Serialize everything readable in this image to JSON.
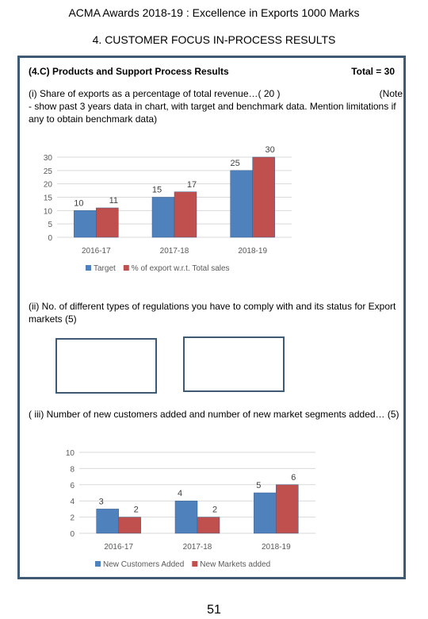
{
  "header": {
    "title": "ACMA  Awards  2018-19 : Excellence in Exports 1000 Marks"
  },
  "section": {
    "title": "4. CUSTOMER FOCUS IN-PROCESS RESULTS"
  },
  "subsection": {
    "title": "(4.C) Products and Support Process Results",
    "total": "Total = 30"
  },
  "item1": {
    "text": "(i) Share of exports as a percentage of total revenue…( 20 )",
    "note_start": "(Note",
    "text_cont": "- show past 3 years data in chart, with target  and benchmark data. Mention limitations if any to obtain benchmark data)"
  },
  "item2": {
    "text": "(ii) No. of different types of regulations you have to comply with  and its status for Export markets (5)"
  },
  "item3": {
    "text": "( iii) Number of new customers added and  number of new market segments added… (5)"
  },
  "page": {
    "number": "51"
  },
  "colors": {
    "series1": "#4f81bd",
    "series2": "#c0504d",
    "frame": "#3f5a75",
    "grid": "#d9d9d9"
  },
  "chart_data": [
    {
      "type": "bar",
      "categories": [
        "2016-17",
        "2017-18",
        "2018-19"
      ],
      "series": [
        {
          "name": "Target",
          "values": [
            10,
            15,
            25
          ]
        },
        {
          "name": "% of export w.r.t. Total sales",
          "values": [
            11,
            17,
            30
          ]
        }
      ],
      "yticks": [
        "0",
        "5",
        "10",
        "15",
        "20",
        "25",
        "30"
      ],
      "ylim": [
        0,
        30
      ],
      "grid": true,
      "legend": "bottom"
    },
    {
      "type": "bar",
      "categories": [
        "2016-17",
        "2017-18",
        "2018-19"
      ],
      "series": [
        {
          "name": "New Customers  Added",
          "values": [
            3,
            4,
            5
          ]
        },
        {
          "name": "New Markets added",
          "values": [
            2,
            2,
            6
          ]
        }
      ],
      "yticks": [
        "0",
        "2",
        "4",
        "6",
        "8",
        "10"
      ],
      "ylim": [
        0,
        10
      ],
      "grid": true,
      "legend": "bottom"
    }
  ]
}
